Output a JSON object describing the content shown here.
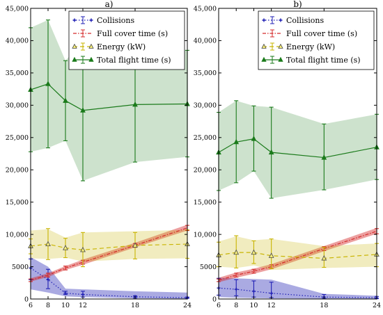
{
  "chart_data": [
    {
      "type": "line",
      "title": "a)",
      "xlabel": "",
      "ylabel": "",
      "x": [
        6,
        8,
        10,
        12,
        18,
        24
      ],
      "xlim": [
        6,
        24
      ],
      "ylim": [
        0,
        45000
      ],
      "xticks": [
        "6",
        "8",
        "10",
        "12",
        "18",
        "24"
      ],
      "yticks": [
        "0",
        "5000",
        "10,000",
        "15,000",
        "20,000",
        "25,000",
        "30,000",
        "35,000",
        "40,000",
        "45,000"
      ],
      "grid": false,
      "legend_position": "top-right",
      "series": [
        {
          "name": "Collisions",
          "color": "#1f1fb4",
          "values": [
            4800,
            3000,
            900,
            700,
            350,
            200
          ],
          "err_low": [
            3000,
            1600,
            700,
            300,
            150,
            100
          ],
          "err_high": [
            6200,
            4600,
            1200,
            1200,
            500,
            300
          ],
          "band_low": [
            1500,
            1000,
            400,
            300,
            100,
            50
          ],
          "band_high": [
            6500,
            5000,
            1600,
            1500,
            1200,
            1000
          ]
        },
        {
          "name": "Full cover time (s)",
          "color": "#d42a2a",
          "values": [
            2900,
            3700,
            4800,
            5700,
            8300,
            11000
          ],
          "err_low": [
            2700,
            3400,
            4500,
            5400,
            8000,
            10600
          ],
          "err_high": [
            3100,
            4000,
            5100,
            6000,
            8600,
            11400
          ],
          "band_low": [
            2700,
            3400,
            4500,
            5300,
            8000,
            10600
          ],
          "band_high": [
            3200,
            4000,
            5100,
            6100,
            8700,
            11500
          ]
        },
        {
          "name": "Energy (kW)",
          "color": "#c8b400",
          "values": [
            8200,
            8500,
            7900,
            7600,
            8300,
            8500
          ],
          "err_low": [
            7000,
            6100,
            6400,
            5000,
            6200,
            6300
          ],
          "err_high": [
            9300,
            10900,
            9400,
            10300,
            10300,
            10700
          ],
          "band_low": [
            6300,
            6200,
            6400,
            5800,
            6200,
            6300
          ],
          "band_high": [
            10600,
            10800,
            9500,
            10300,
            10500,
            10700
          ]
        },
        {
          "name": "Total flight time (s)",
          "color": "#1a7a1a",
          "values": [
            32400,
            33300,
            30700,
            29200,
            30100,
            30200
          ],
          "err_low": [
            22800,
            23400,
            24500,
            18300,
            21200,
            22000
          ],
          "err_high": [
            42000,
            43200,
            36900,
            40000,
            39000,
            38500
          ],
          "band_low": [
            22800,
            23400,
            24500,
            18300,
            21200,
            22000
          ],
          "band_high": [
            42000,
            43200,
            36900,
            40000,
            39000,
            38500
          ]
        }
      ]
    },
    {
      "type": "line",
      "title": "b)",
      "xlabel": "",
      "ylabel": "",
      "x": [
        6,
        8,
        10,
        12,
        18,
        24
      ],
      "xlim": [
        6,
        24
      ],
      "ylim": [
        0,
        45000
      ],
      "xticks": [
        "6",
        "8",
        "10",
        "12",
        "18",
        "24"
      ],
      "yticks": [
        "0",
        "5000",
        "10,000",
        "15,000",
        "20,000",
        "25,000",
        "30,000",
        "35,000",
        "40,000",
        "45,000"
      ],
      "grid": false,
      "legend_position": "top-right",
      "series": [
        {
          "name": "Collisions",
          "color": "#1f1fb4",
          "values": [
            1700,
            1500,
            1200,
            900,
            300,
            200
          ],
          "err_low": [
            600,
            500,
            300,
            200,
            100,
            50
          ],
          "err_high": [
            3200,
            3000,
            2800,
            2600,
            700,
            400
          ],
          "band_low": [
            300,
            200,
            150,
            100,
            50,
            50
          ],
          "band_high": [
            3300,
            3200,
            3100,
            3000,
            800,
            500
          ]
        },
        {
          "name": "Full cover time (s)",
          "color": "#d42a2a",
          "values": [
            2900,
            3700,
            4300,
            5000,
            7800,
            10500
          ],
          "err_low": [
            2700,
            3400,
            4000,
            4700,
            7500,
            10100
          ],
          "err_high": [
            3100,
            4000,
            4600,
            5300,
            8100,
            10900
          ],
          "band_low": [
            2600,
            3300,
            3900,
            4600,
            7400,
            10100
          ],
          "band_high": [
            3300,
            4100,
            4700,
            5400,
            8200,
            11000
          ]
        },
        {
          "name": "Energy (kW)",
          "color": "#c8b400",
          "values": [
            6800,
            7200,
            7200,
            6700,
            6300,
            6900
          ],
          "err_low": [
            5000,
            4800,
            5500,
            4700,
            4900,
            5000
          ],
          "err_high": [
            8800,
            9800,
            9000,
            9300,
            8000,
            8600
          ],
          "band_low": [
            5000,
            4800,
            5200,
            4500,
            4800,
            5000
          ],
          "band_high": [
            8900,
            9700,
            9100,
            9300,
            8200,
            8600
          ]
        },
        {
          "name": "Total flight time (s)",
          "color": "#1a7a1a",
          "values": [
            22700,
            24300,
            24800,
            22700,
            21900,
            23500
          ],
          "err_low": [
            16800,
            18000,
            19800,
            15600,
            16900,
            18500
          ],
          "err_high": [
            28900,
            30700,
            29900,
            29700,
            27100,
            28600
          ],
          "band_low": [
            16800,
            18000,
            19800,
            15600,
            16900,
            18500
          ],
          "band_high": [
            28900,
            30700,
            29900,
            29700,
            27100,
            28600
          ]
        }
      ]
    }
  ]
}
